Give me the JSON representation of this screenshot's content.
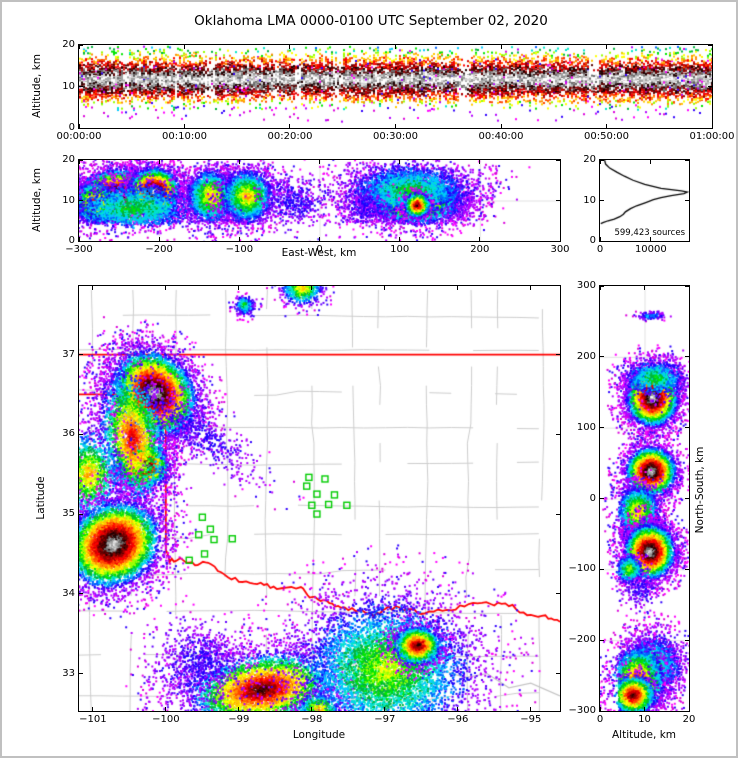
{
  "title": "Oklahoma LMA 0000-0100 UTC September 02, 2020",
  "panels": {
    "time_height": {
      "ylabel": "Altitude, km",
      "x_ticks": [
        {
          "f": 0,
          "l": "00:00:00"
        },
        {
          "f": 0.16667,
          "l": "00:10:00"
        },
        {
          "f": 0.33333,
          "l": "00:20:00"
        },
        {
          "f": 0.5,
          "l": "00:30:00"
        },
        {
          "f": 0.66667,
          "l": "00:40:00"
        },
        {
          "f": 0.83333,
          "l": "00:50:00"
        },
        {
          "f": 1,
          "l": "01:00:00"
        }
      ],
      "y_ticks": [
        {
          "f": 0,
          "l": "20"
        },
        {
          "f": 0.5,
          "l": "10"
        },
        {
          "f": 1,
          "l": "0"
        }
      ]
    },
    "ew_height": {
      "xlabel": "East-West, km",
      "ylabel": "Altitude, km",
      "x_ticks": [
        {
          "f": 0,
          "l": "−300"
        },
        {
          "f": 0.16667,
          "l": "−200"
        },
        {
          "f": 0.33333,
          "l": "−100"
        },
        {
          "f": 0.5,
          "l": "0"
        },
        {
          "f": 0.66667,
          "l": "100"
        },
        {
          "f": 0.83333,
          "l": "200"
        },
        {
          "f": 1,
          "l": "300"
        }
      ],
      "y_ticks": [
        {
          "f": 0,
          "l": "20"
        },
        {
          "f": 0.5,
          "l": "10"
        },
        {
          "f": 1,
          "l": "0"
        }
      ]
    },
    "histogram": {
      "annotation": "599,423 sources",
      "x_ticks": [
        {
          "f": 0,
          "l": "0"
        },
        {
          "f": 0.5714,
          "l": "10000"
        }
      ],
      "y_ticks": [
        {
          "f": 0,
          "l": "20"
        },
        {
          "f": 0.5,
          "l": "10"
        },
        {
          "f": 1,
          "l": "0"
        }
      ]
    },
    "map": {
      "xlabel": "Longitude",
      "ylabel": "Latitude",
      "x_ticks": [
        {
          "f": 0.0288,
          "l": "−101"
        },
        {
          "f": 0.1806,
          "l": "−100"
        },
        {
          "f": 0.3323,
          "l": "−99"
        },
        {
          "f": 0.4841,
          "l": "−98"
        },
        {
          "f": 0.6359,
          "l": "−97"
        },
        {
          "f": 0.7876,
          "l": "−96"
        },
        {
          "f": 0.9393,
          "l": "−95"
        }
      ],
      "y_ticks": [
        {
          "f": 0.1613,
          "l": "37"
        },
        {
          "f": 0.349,
          "l": "36"
        },
        {
          "f": 0.5366,
          "l": "35"
        },
        {
          "f": 0.7242,
          "l": "34"
        },
        {
          "f": 0.9118,
          "l": "33"
        }
      ]
    },
    "ns_height": {
      "xlabel": "Altitude, km",
      "ylabel": "North-South, km",
      "x_ticks": [
        {
          "f": 0,
          "l": "0"
        },
        {
          "f": 0.5,
          "l": "10"
        },
        {
          "f": 1,
          "l": "20"
        }
      ],
      "y_ticks": [
        {
          "f": 0,
          "l": "300"
        },
        {
          "f": 0.16667,
          "l": "200"
        },
        {
          "f": 0.33333,
          "l": "100"
        },
        {
          "f": 0.5,
          "l": "0"
        },
        {
          "f": 0.66667,
          "l": "−100"
        },
        {
          "f": 0.83333,
          "l": "−200"
        },
        {
          "f": 1,
          "l": "−300"
        }
      ]
    }
  },
  "chart_data": {
    "palette": [
      "#b400ff",
      "#6400ff",
      "#1e00ff",
      "#0064ff",
      "#00c8ff",
      "#00e6c8",
      "#00b43c",
      "#00e600",
      "#96ff00",
      "#ffff00",
      "#ffc800",
      "#ff8c00",
      "#ff4600",
      "#ff0000",
      "#d20000",
      "#960000",
      "#5a0000",
      "#1e0000",
      "#6e6e6e",
      "#a0a0a0",
      "#d2d2d2",
      "#ffffff"
    ],
    "speckle_colors": [
      "#ff00ff",
      "#dc00dc",
      "#b400ff",
      "#3200ff"
    ],
    "map_colors": {
      "county": "#cccccc",
      "state_border": "#ff0000",
      "station": "#00cc00",
      "river_gray": "#c4c4c4"
    },
    "time_height": {
      "type": "heatmap",
      "x_range_seconds": [
        0,
        3600
      ],
      "alt_range_km": [
        0,
        20
      ],
      "band": {
        "center_alt": 11.8,
        "sigma": 2.6,
        "sigma_wide": 3.6,
        "dense_range": [
          4.3,
          19.6
        ]
      }
    },
    "ew_height": {
      "type": "heatmap",
      "x_range_km": [
        -300,
        300
      ],
      "alt_range_km": [
        0,
        20
      ],
      "clusters": [
        {
          "x": -252,
          "y": 11.5,
          "sx": 24,
          "sy": 3.0,
          "rot": 0,
          "n": 4800,
          "core": "white"
        },
        {
          "x": -206,
          "y": 12.2,
          "sx": 16,
          "sy": 2.9,
          "rot": 0,
          "n": 3400,
          "core": "white"
        },
        {
          "x": -280,
          "y": 9.5,
          "sx": 13,
          "sy": 2.5,
          "rot": 0,
          "n": 1400,
          "core": "red"
        },
        {
          "x": -232,
          "y": 8.0,
          "sx": 42,
          "sy": 3.3,
          "rot": 0,
          "n": 2200,
          "core": "green"
        },
        {
          "x": -135,
          "y": 11.0,
          "sx": 15,
          "sy": 3.3,
          "rot": 0,
          "n": 2400,
          "core": "orange"
        },
        {
          "x": -90,
          "y": 11.0,
          "sx": 16,
          "sy": 3.3,
          "rot": 0,
          "n": 2400,
          "core": "orange"
        },
        {
          "x": -32,
          "y": 10.0,
          "sx": 22,
          "sy": 3.3,
          "rot": 0,
          "n": 450,
          "core": "blue"
        },
        {
          "x": 120,
          "y": 9.5,
          "sx": 28,
          "sy": 2.7,
          "rot": 0,
          "n": 4600,
          "core": "red"
        },
        {
          "x": 112,
          "y": 12.5,
          "sx": 40,
          "sy": 3.4,
          "rot": 0,
          "n": 3000,
          "core": "green"
        },
        {
          "x": 122,
          "y": 8.8,
          "sx": 8,
          "sy": 1.5,
          "rot": 0,
          "n": 600,
          "core": "black"
        },
        {
          "x": 55,
          "y": 8.0,
          "sx": 15,
          "sy": 3.0,
          "rot": 0,
          "n": 250,
          "core": "blue"
        },
        {
          "x": -120,
          "y": 3.2,
          "sx": 110,
          "sy": 1.1,
          "rot": 0,
          "n": 200,
          "core": "purple"
        }
      ]
    },
    "histogram": {
      "type": "line",
      "total_sources": 599423,
      "count_range": [
        0,
        17500
      ],
      "points_count_alt": [
        [
          900,
          20
        ],
        [
          1100,
          19
        ],
        [
          1900,
          18
        ],
        [
          3300,
          17
        ],
        [
          4800,
          16
        ],
        [
          6500,
          15
        ],
        [
          8800,
          14
        ],
        [
          12000,
          13
        ],
        [
          16000,
          12.4
        ],
        [
          17200,
          12.1
        ],
        [
          16500,
          11.7
        ],
        [
          14000,
          11.2
        ],
        [
          12000,
          10.7
        ],
        [
          10500,
          10.2
        ],
        [
          9000,
          9.5
        ],
        [
          7200,
          8.7
        ],
        [
          6000,
          8
        ],
        [
          5000,
          7.2
        ],
        [
          4600,
          6.6
        ],
        [
          3900,
          6
        ],
        [
          2800,
          5.4
        ],
        [
          1600,
          5
        ],
        [
          700,
          4.6
        ],
        [
          150,
          4.3
        ]
      ]
    },
    "map": {
      "type": "heatmap",
      "lon_range": [
        -101.19,
        -94.6
      ],
      "lat_range": [
        32.53,
        37.86
      ],
      "clusters": [
        {
          "x": -100.15,
          "y": 36.52,
          "sx": 0.3,
          "sy": 0.24,
          "rot": -35,
          "n": 6000,
          "core": "white"
        },
        {
          "x": -99.6,
          "y": 36.05,
          "sx": 0.5,
          "sy": 0.14,
          "rot": -33,
          "n": 600,
          "core": "blue"
        },
        {
          "x": -100.3,
          "y": 35.6,
          "sx": 0.17,
          "sy": 0.13,
          "rot": 0,
          "n": 2000,
          "core": "white"
        },
        {
          "x": -100.45,
          "y": 35.95,
          "sx": 0.22,
          "sy": 0.42,
          "rot": 10,
          "n": 2200,
          "core": "red"
        },
        {
          "x": -101.05,
          "y": 35.5,
          "sx": 0.22,
          "sy": 0.28,
          "rot": 0,
          "n": 1300,
          "core": "orange"
        },
        {
          "x": -100.72,
          "y": 34.62,
          "sx": 0.32,
          "sy": 0.26,
          "rot": 20,
          "n": 6000,
          "core": "white"
        },
        {
          "x": -98.92,
          "y": 37.62,
          "sx": 0.07,
          "sy": 0.06,
          "rot": 0,
          "n": 220,
          "core": "green"
        },
        {
          "x": -98.13,
          "y": 37.84,
          "sx": 0.14,
          "sy": 0.11,
          "rot": 0,
          "n": 700,
          "core": "orange"
        },
        {
          "x": -98.68,
          "y": 32.8,
          "sx": 0.5,
          "sy": 0.23,
          "rot": 8,
          "n": 4200,
          "core": "black"
        },
        {
          "x": -99.55,
          "y": 33.1,
          "sx": 0.3,
          "sy": 0.25,
          "rot": 0,
          "n": 900,
          "core": "blue"
        },
        {
          "x": -96.98,
          "y": 33.05,
          "sx": 0.6,
          "sy": 0.45,
          "rot": 0,
          "n": 6000,
          "core": "yellow"
        },
        {
          "x": -96.55,
          "y": 33.35,
          "sx": 0.16,
          "sy": 0.12,
          "rot": 0,
          "n": 1500,
          "core": "black"
        },
        {
          "x": -97.9,
          "y": 32.56,
          "sx": 0.14,
          "sy": 0.1,
          "rot": 0,
          "n": 350,
          "core": "orange"
        }
      ],
      "stations_lon_lat": [
        [
          -99.5,
          34.96
        ],
        [
          -99.39,
          34.81
        ],
        [
          -99.55,
          34.74
        ],
        [
          -99.34,
          34.68
        ],
        [
          -99.09,
          34.69
        ],
        [
          -99.47,
          34.5
        ],
        [
          -99.68,
          34.42
        ],
        [
          -98.04,
          35.46
        ],
        [
          -97.82,
          35.44
        ],
        [
          -98.07,
          35.35
        ],
        [
          -97.93,
          35.25
        ],
        [
          -97.69,
          35.24
        ],
        [
          -98.0,
          35.11
        ],
        [
          -97.77,
          35.12
        ],
        [
          -97.52,
          35.11
        ],
        [
          -97.93,
          35.0
        ]
      ],
      "state_borders": {
        "north_border_lat": 37,
        "panhandle_south_lat": 36.5,
        "panhandle_east_lon": -100,
        "red_river_lon_lat": [
          [
            -100,
            34.56
          ],
          [
            -99.95,
            34.42
          ],
          [
            -99.8,
            34.44
          ],
          [
            -99.6,
            34.37
          ],
          [
            -99.42,
            34.4
          ],
          [
            -99.2,
            34.22
          ],
          [
            -98.95,
            34.15
          ],
          [
            -98.7,
            34.13
          ],
          [
            -98.48,
            34.06
          ],
          [
            -98.15,
            34.08
          ],
          [
            -98.0,
            33.95
          ],
          [
            -97.8,
            33.9
          ],
          [
            -97.6,
            33.82
          ],
          [
            -97.35,
            33.8
          ],
          [
            -97.15,
            33.73
          ],
          [
            -96.95,
            33.83
          ],
          [
            -96.7,
            33.8
          ],
          [
            -96.45,
            33.76
          ],
          [
            -96.15,
            33.8
          ],
          [
            -95.85,
            33.86
          ],
          [
            -95.55,
            33.88
          ],
          [
            -95.3,
            33.86
          ],
          [
            -95.05,
            33.74
          ],
          [
            -94.8,
            33.72
          ],
          [
            -94.6,
            33.64
          ]
        ]
      },
      "gray_river_lon_lat": [
        [
          -96.25,
          33.05
        ],
        [
          -95.9,
          32.95
        ],
        [
          -95.6,
          33.0
        ],
        [
          -95.3,
          32.82
        ],
        [
          -95.0,
          32.88
        ],
        [
          -94.6,
          32.72
        ]
      ]
    },
    "ns_height": {
      "type": "heatmap",
      "y_range_km": [
        -300,
        300
      ],
      "alt_range_km": [
        0,
        20
      ],
      "clusters": [
        {
          "x": 11.5,
          "y": 258,
          "sx": 1.5,
          "sy": 3,
          "rot": 0,
          "n": 120,
          "core": "cyan"
        },
        {
          "x": 11.8,
          "y": 142,
          "sx": 2.9,
          "sy": 20,
          "rot": 0,
          "n": 4800,
          "core": "white"
        },
        {
          "x": 12.5,
          "y": 170,
          "sx": 3.5,
          "sy": 14,
          "rot": 0,
          "n": 800,
          "core": "green"
        },
        {
          "x": 11.5,
          "y": 38,
          "sx": 2.8,
          "sy": 17,
          "rot": 0,
          "n": 3200,
          "core": "white"
        },
        {
          "x": 8.5,
          "y": -18,
          "sx": 2.4,
          "sy": 18,
          "rot": 0,
          "n": 1800,
          "core": "orange"
        },
        {
          "x": 11.2,
          "y": -75,
          "sx": 2.8,
          "sy": 19,
          "rot": 0,
          "n": 4400,
          "core": "white"
        },
        {
          "x": 6.5,
          "y": -100,
          "sx": 1.5,
          "sy": 10,
          "rot": 0,
          "n": 500,
          "core": "yellow"
        },
        {
          "x": 9.0,
          "y": -130,
          "sx": 2.0,
          "sy": 12,
          "rot": 0,
          "n": 150,
          "core": "blue"
        },
        {
          "x": 12.0,
          "y": -235,
          "sx": 3.2,
          "sy": 22,
          "rot": 0,
          "n": 2200,
          "core": "green"
        },
        {
          "x": 8.5,
          "y": -258,
          "sx": 3.0,
          "sy": 24,
          "rot": 0,
          "n": 2600,
          "core": "red"
        },
        {
          "x": 7.5,
          "y": -278,
          "sx": 2.4,
          "sy": 14,
          "rot": 0,
          "n": 1500,
          "core": "black"
        }
      ]
    }
  }
}
